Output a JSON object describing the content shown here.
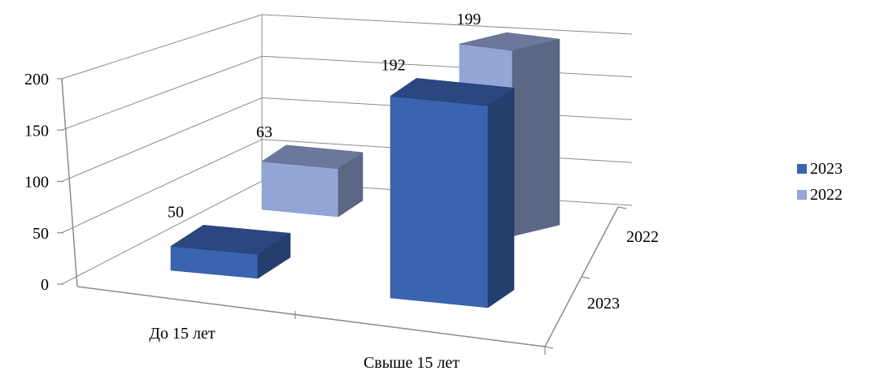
{
  "chart_data": {
    "type": "bar",
    "categories": [
      "До 15 лет",
      "Свыше 15 лет"
    ],
    "series": [
      {
        "name": "2023",
        "values": [
          50,
          192
        ],
        "color": "#3A64B0"
      },
      {
        "name": "2022",
        "values": [
          63,
          199
        ],
        "color": "#94A6D8"
      }
    ],
    "depth_labels": [
      "2022",
      "2023"
    ],
    "y_ticks": [
      "0",
      "50",
      "100",
      "150",
      "200"
    ],
    "ylim": [
      0,
      200
    ],
    "title": "",
    "xlabel": "",
    "ylabel": "",
    "legend_position": "right",
    "grid": true,
    "style": "3d-column"
  }
}
